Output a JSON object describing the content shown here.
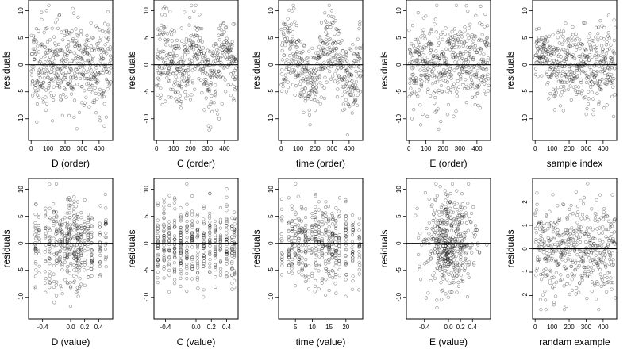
{
  "figure": {
    "panels": [
      {
        "ylabel": "residuals",
        "xlabel": "D (order)"
      },
      {
        "ylabel": "residuals",
        "xlabel": "C (order)"
      },
      {
        "ylabel": "residuals",
        "xlabel": "time (order)"
      },
      {
        "ylabel": "residuals",
        "xlabel": "E (order)"
      },
      {
        "ylabel": "residuals",
        "xlabel": "sample index"
      },
      {
        "ylabel": "residuals",
        "xlabel": "D (value)"
      },
      {
        "ylabel": "residuals",
        "xlabel": "C (value)"
      },
      {
        "ylabel": "residuals",
        "xlabel": "time (value)"
      },
      {
        "ylabel": "residuals",
        "xlabel": "E (value)"
      },
      {
        "ylabel": "residuals",
        "xlabel": "randam example"
      }
    ]
  },
  "chart_data": [
    {
      "type": "scatter",
      "title": "",
      "xlabel": "D (order)",
      "ylabel": "residuals",
      "xlim": [
        -15,
        480
      ],
      "ylim": [
        -14,
        12
      ],
      "xticks": [
        0,
        100,
        200,
        300,
        400
      ],
      "xtick_labels": [
        "0",
        "100",
        "200",
        "300",
        "400"
      ],
      "yticks": [
        -10,
        -5,
        0,
        5,
        10
      ],
      "ytick_labels": [
        "-10",
        "-5",
        "0",
        "5",
        "10"
      ],
      "hline": 0,
      "grid": false,
      "marker": "open-circle",
      "pattern": {
        "kind": "index",
        "n": 470,
        "x_min": 1,
        "x_max": 470,
        "sd": 4.2,
        "mean": 0,
        "clip": [
          -13,
          11
        ],
        "seed": 11
      },
      "points_note": "residuals vs. row order of D; roughly uniform band between -10 and 11"
    },
    {
      "type": "scatter",
      "title": "",
      "xlabel": "C (order)",
      "ylabel": "residuals",
      "xlim": [
        -15,
        480
      ],
      "ylim": [
        -14,
        12
      ],
      "xticks": [
        0,
        100,
        200,
        300,
        400
      ],
      "xtick_labels": [
        "0",
        "100",
        "200",
        "300",
        "400"
      ],
      "yticks": [
        -10,
        -5,
        0,
        5,
        10
      ],
      "ytick_labels": [
        "-10",
        "-5",
        "0",
        "5",
        "10"
      ],
      "hline": 0,
      "grid": false,
      "marker": "open-circle",
      "pattern": {
        "kind": "index-wave",
        "n": 470,
        "x_min": 1,
        "x_max": 470,
        "sd": 3.6,
        "mean": 0,
        "amp": 2.5,
        "period": 180,
        "clip": [
          -13,
          11
        ],
        "seed": 23
      }
    },
    {
      "type": "scatter",
      "title": "",
      "xlabel": "time (order)",
      "ylabel": "residuals",
      "xlim": [
        -15,
        480
      ],
      "ylim": [
        -14,
        12
      ],
      "xticks": [
        0,
        100,
        200,
        300,
        400
      ],
      "xtick_labels": [
        "0",
        "100",
        "200",
        "300",
        "400"
      ],
      "yticks": [
        -10,
        -5,
        0,
        5,
        10
      ],
      "ytick_labels": [
        "-10",
        "-5",
        "0",
        "5",
        "10"
      ],
      "hline": 0,
      "grid": false,
      "marker": "open-circle",
      "pattern": {
        "kind": "index-wave",
        "n": 470,
        "x_min": 1,
        "x_max": 470,
        "sd": 3.4,
        "mean": 0,
        "amp": 3.0,
        "period": 230,
        "clip": [
          -13,
          11
        ],
        "seed": 37
      }
    },
    {
      "type": "scatter",
      "title": "",
      "xlabel": "E (order)",
      "ylabel": "residuals",
      "xlim": [
        -15,
        480
      ],
      "ylim": [
        -14,
        12
      ],
      "xticks": [
        0,
        100,
        200,
        300,
        400
      ],
      "xtick_labels": [
        "0",
        "100",
        "200",
        "300",
        "400"
      ],
      "yticks": [
        -10,
        -5,
        0,
        5,
        10
      ],
      "ytick_labels": [
        "-10",
        "-5",
        "0",
        "5",
        "10"
      ],
      "hline": 0,
      "grid": false,
      "marker": "open-circle",
      "pattern": {
        "kind": "index",
        "n": 470,
        "x_min": 1,
        "x_max": 470,
        "sd": 4.3,
        "mean": 0.3,
        "clip": [
          -13,
          11
        ],
        "seed": 53
      }
    },
    {
      "type": "scatter",
      "title": "",
      "xlabel": "sample index",
      "ylabel": "residuals",
      "xlim": [
        -15,
        480
      ],
      "ylim": [
        -14,
        12
      ],
      "xticks": [
        0,
        100,
        200,
        300,
        400
      ],
      "xtick_labels": [
        "0",
        "100",
        "200",
        "300",
        "400"
      ],
      "yticks": [
        -10,
        -5,
        0,
        5,
        10
      ],
      "ytick_labels": [
        "-10",
        "-5",
        "0",
        "5",
        "10"
      ],
      "hline": 0,
      "grid": false,
      "marker": "open-circle",
      "pattern": {
        "kind": "index-sorted",
        "n": 470,
        "x_min": 1,
        "x_max": 470,
        "sd": 3.8,
        "mean": 0,
        "clip": [
          -13,
          11
        ],
        "seed": 71
      }
    },
    {
      "type": "scatter",
      "title": "",
      "xlabel": "D (value)",
      "ylabel": "residuals",
      "xlim": [
        -0.6,
        0.6
      ],
      "ylim": [
        -14,
        12
      ],
      "xticks": [
        -0.4,
        0.0,
        0.2,
        0.4
      ],
      "xtick_labels": [
        "-0.4",
        "0.0",
        "0.2",
        "0.4"
      ],
      "yticks": [
        -10,
        -5,
        0,
        5,
        10
      ],
      "ytick_labels": [
        "-10",
        "-5",
        "0",
        "5",
        "10"
      ],
      "hline": 0,
      "grid": false,
      "marker": "open-circle",
      "pattern": {
        "kind": "discrete",
        "n": 470,
        "levels": [
          -0.5,
          -0.45,
          -0.36,
          -0.3,
          -0.24,
          -0.2,
          -0.15,
          -0.12,
          -0.08,
          -0.05,
          -0.02,
          0.0,
          0.05,
          0.08,
          0.1,
          0.13,
          0.15,
          0.2,
          0.25,
          0.3,
          0.42,
          0.5
        ],
        "jitter": 0.004,
        "sd": 4.0,
        "mean": 0,
        "clip": [
          -13,
          11
        ],
        "seed": 89
      }
    },
    {
      "type": "scatter",
      "title": "",
      "xlabel": "C (value)",
      "ylabel": "residuals",
      "xlim": [
        -0.55,
        0.55
      ],
      "ylim": [
        -14,
        12
      ],
      "xticks": [
        -0.4,
        0.0,
        0.2,
        0.4
      ],
      "xtick_labels": [
        "-0.4",
        "0.0",
        "0.2",
        "0.4"
      ],
      "yticks": [
        -10,
        -5,
        0,
        5,
        10
      ],
      "ytick_labels": [
        "-10",
        "-5",
        "0",
        "5",
        "10"
      ],
      "hline": 0,
      "grid": false,
      "marker": "open-circle",
      "pattern": {
        "kind": "discrete",
        "n": 470,
        "levels": [
          -0.5,
          -0.42,
          -0.35,
          -0.28,
          -0.2,
          -0.12,
          -0.05,
          0.02,
          0.1,
          0.18,
          0.25,
          0.32,
          0.4,
          0.47,
          0.5
        ],
        "jitter": 0.002,
        "sd": 3.6,
        "mean": 0,
        "clip": [
          -13,
          11
        ],
        "seed": 101
      }
    },
    {
      "type": "scatter",
      "title": "",
      "xlabel": "time (value)",
      "ylabel": "residuals",
      "xlim": [
        0,
        25
      ],
      "ylim": [
        -14,
        12
      ],
      "xticks": [
        5,
        10,
        15,
        20
      ],
      "xtick_labels": [
        "5",
        "10",
        "15",
        "20"
      ],
      "yticks": [
        -10,
        -5,
        0,
        5,
        10
      ],
      "ytick_labels": [
        "-10",
        "-5",
        "0",
        "5",
        "10"
      ],
      "hline": 0,
      "grid": false,
      "marker": "open-circle",
      "pattern": {
        "kind": "discrete",
        "n": 470,
        "levels": [
          1,
          3,
          4,
          5,
          6,
          7,
          8,
          9,
          10,
          11,
          12,
          13,
          14,
          15,
          16,
          17,
          18,
          20,
          22,
          24
        ],
        "jitter": 0.08,
        "sd": 3.7,
        "mean": 0,
        "clip": [
          -13,
          11
        ],
        "seed": 131
      }
    },
    {
      "type": "scatter",
      "title": "",
      "xlabel": "E (value)",
      "ylabel": "residuals",
      "xlim": [
        -0.7,
        0.7
      ],
      "ylim": [
        -14,
        12
      ],
      "xticks": [
        -0.4,
        0.0,
        0.2,
        0.4
      ],
      "xtick_labels": [
        "-0.4",
        "0.0",
        "0.2",
        "0.4"
      ],
      "yticks": [
        -10,
        -5,
        0,
        5,
        10
      ],
      "ytick_labels": [
        "-10",
        "-5",
        "0",
        "5",
        "10"
      ],
      "hline": 0,
      "grid": false,
      "marker": "open-circle",
      "pattern": {
        "kind": "gauss-x",
        "n": 470,
        "x_mean": 0.0,
        "x_sd": 0.2,
        "sd": 4.0,
        "mean": 0,
        "clip": [
          -13,
          11
        ],
        "seed": 151
      }
    },
    {
      "type": "scatter",
      "title": "",
      "xlabel": "randam example",
      "ylabel": "residuals",
      "xlim": [
        -15,
        480
      ],
      "ylim": [
        -3.0,
        3.0
      ],
      "xticks": [
        0,
        100,
        200,
        300,
        400
      ],
      "xtick_labels": [
        "0",
        "100",
        "200",
        "300",
        "400"
      ],
      "yticks": [
        -2,
        -1,
        0,
        1,
        2
      ],
      "ytick_labels": [
        "-2",
        "-1",
        "0",
        "1",
        "2"
      ],
      "hline": 0,
      "grid": false,
      "marker": "open-circle",
      "pattern": {
        "kind": "index",
        "n": 470,
        "x_min": 1,
        "x_max": 470,
        "sd": 1.0,
        "mean": 0,
        "clip": [
          -2.6,
          2.8
        ],
        "seed": 173
      }
    }
  ]
}
